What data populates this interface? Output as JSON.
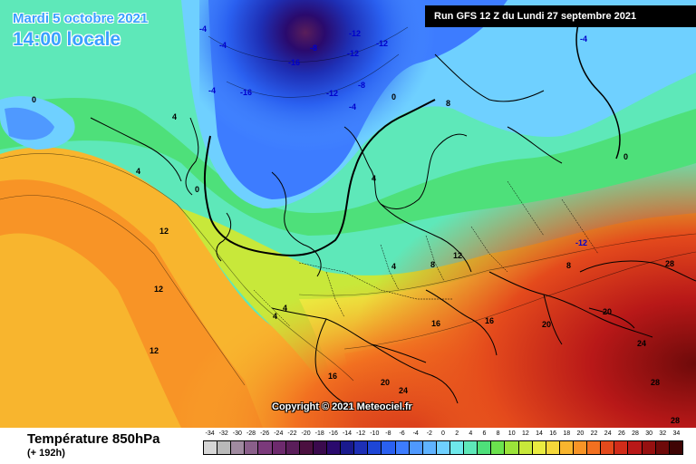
{
  "header": {
    "date": "Mardi 5 octobre 2021",
    "time": "14:00 locale",
    "run": "Run GFS 12 Z du Lundi 27 septembre 2021"
  },
  "copyright": "Copyright © 2021 Meteociel.fr",
  "legend": {
    "title": "Température 850hPa",
    "subtitle": "(+ 192h)",
    "ticks": [
      "-34",
      "-32",
      "-30",
      "-28",
      "-26",
      "-24",
      "-22",
      "-20",
      "-18",
      "-16",
      "-14",
      "-12",
      "-10",
      "-8",
      "-6",
      "-4",
      "-2",
      "0",
      "2",
      "4",
      "6",
      "8",
      "10",
      "12",
      "14",
      "16",
      "18",
      "20",
      "22",
      "24",
      "26",
      "28",
      "30",
      "32",
      "34"
    ],
    "colors": [
      "#d6d6d6",
      "#b9b9b9",
      "#a08aa0",
      "#8a5f8a",
      "#7b3a7b",
      "#6d2a6d",
      "#5a1e5a",
      "#4b1040",
      "#3a0a4d",
      "#2a0a6d",
      "#1a1a8d",
      "#1e2fb5",
      "#1e46d6",
      "#2a60f0",
      "#3d7cff",
      "#4f99ff",
      "#5fb3ff",
      "#6fd0ff",
      "#6ee8ea",
      "#5ee8b9",
      "#4ee07a",
      "#6be24e",
      "#9be33a",
      "#c8e83a",
      "#eaec40",
      "#f6d83a",
      "#f8b52e",
      "#f89426",
      "#f27020",
      "#e44a1c",
      "#d12c1a",
      "#b81818",
      "#961010",
      "#6e0a0a",
      "#3f0404"
    ]
  },
  "map_labels": [
    {
      "text": "-4",
      "color": "#0000cc"
    },
    {
      "text": "-8",
      "color": "#0000cc"
    },
    {
      "text": "-12",
      "color": "#0000cc"
    },
    {
      "text": "-12",
      "color": "#0000cc"
    },
    {
      "text": "-16",
      "color": "#0000cc"
    },
    {
      "text": "-12",
      "color": "#0000cc"
    },
    {
      "text": "-16",
      "color": "#0000cc"
    },
    {
      "text": "-8",
      "color": "#0000cc"
    },
    {
      "text": "-12",
      "color": "#0000cc"
    },
    {
      "text": "-4",
      "color": "#0000cc"
    },
    {
      "text": "-4",
      "color": "#0000cc"
    },
    {
      "text": "-4",
      "color": "#0000cc"
    },
    {
      "text": "0",
      "color": "#000000"
    },
    {
      "text": "0",
      "color": "#000000"
    },
    {
      "text": "0",
      "color": "#000000"
    },
    {
      "text": "4",
      "color": "#000000"
    },
    {
      "text": "4",
      "color": "#000000"
    },
    {
      "text": "4",
      "color": "#000000"
    },
    {
      "text": "4",
      "color": "#000000"
    },
    {
      "text": "4",
      "color": "#000000"
    },
    {
      "text": "8",
      "color": "#000000"
    },
    {
      "text": "8",
      "color": "#000000"
    },
    {
      "text": "8",
      "color": "#000000"
    },
    {
      "text": "12",
      "color": "#000000"
    },
    {
      "text": "12",
      "color": "#000000"
    },
    {
      "text": "12",
      "color": "#000000"
    },
    {
      "text": "12",
      "color": "#000000"
    },
    {
      "text": "16",
      "color": "#000000"
    },
    {
      "text": "16",
      "color": "#000000"
    },
    {
      "text": "16",
      "color": "#000000"
    },
    {
      "text": "20",
      "color": "#000000"
    },
    {
      "text": "20",
      "color": "#000000"
    },
    {
      "text": "20",
      "color": "#000000"
    },
    {
      "text": "24",
      "color": "#000000"
    },
    {
      "text": "24",
      "color": "#000000"
    },
    {
      "text": "28",
      "color": "#000000"
    },
    {
      "text": "28",
      "color": "#000000"
    },
    {
      "text": "28",
      "color": "#000000"
    },
    {
      "text": "-12",
      "color": "#0000cc"
    },
    {
      "text": "-4",
      "color": "#0000cc"
    },
    {
      "text": "0",
      "color": "#000000"
    },
    {
      "text": "4",
      "color": "#000000"
    }
  ]
}
